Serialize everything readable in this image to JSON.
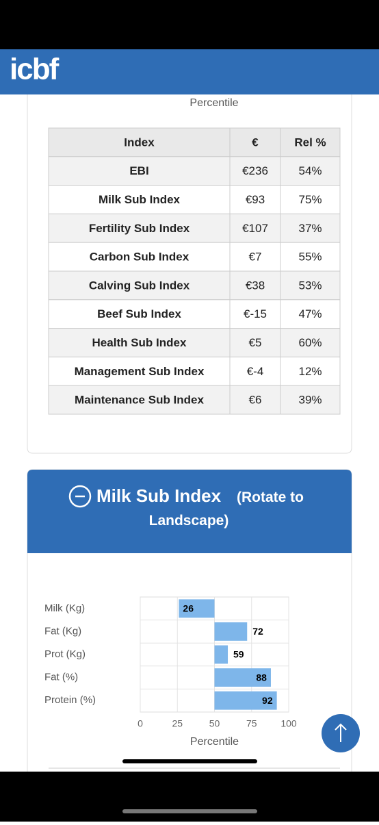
{
  "header": {
    "logo": "icbf"
  },
  "previous_chart": {
    "axis_label": "Percentile"
  },
  "table": {
    "columns": [
      "Index",
      "€",
      "Rel %"
    ],
    "rows": [
      [
        "EBI",
        "€236",
        "54%"
      ],
      [
        "Milk Sub Index",
        "€93",
        "75%"
      ],
      [
        "Fertility Sub Index",
        "€107",
        "37%"
      ],
      [
        "Carbon Sub Index",
        "€7",
        "55%"
      ],
      [
        "Calving Sub Index",
        "€38",
        "53%"
      ],
      [
        "Beef Sub Index",
        "€-15",
        "47%"
      ],
      [
        "Health Sub Index",
        "€5",
        "60%"
      ],
      [
        "Management Sub Index",
        "€-4",
        "12%"
      ],
      [
        "Maintenance Sub Index",
        "€6",
        "39%"
      ]
    ]
  },
  "panel": {
    "title": "Milk Sub Index",
    "note": "(Rotate to Landscape)"
  },
  "chart_data": {
    "type": "bar",
    "orientation": "horizontal",
    "categories": [
      "Milk (Kg)",
      "Fat (Kg)",
      "Prot (Kg)",
      "Fat (%)",
      "Protein (%)"
    ],
    "values": [
      26,
      72,
      59,
      88,
      92
    ],
    "color": "#7eb6ea",
    "baseline": 50,
    "xlim": [
      0,
      100
    ],
    "xticks": [
      0,
      25,
      50,
      75,
      100
    ],
    "xlabel": "Percentile",
    "grid": true
  }
}
